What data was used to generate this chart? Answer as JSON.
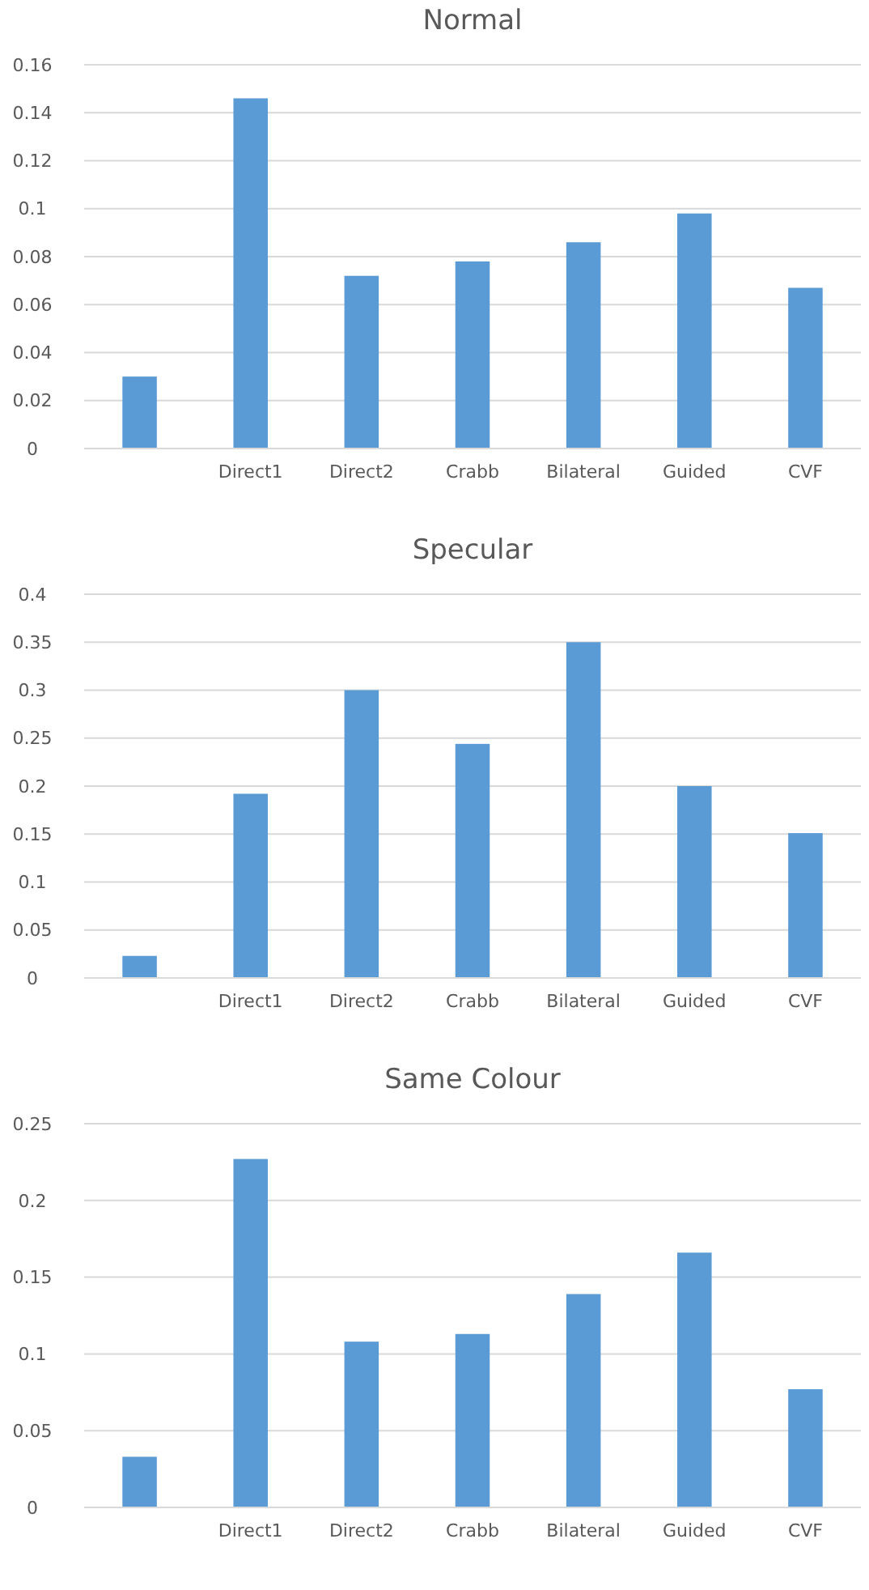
{
  "chart_data": [
    {
      "type": "bar",
      "title": "Normal",
      "categories": [
        null,
        "Direct1",
        "Direct2",
        "Crabb",
        "Bilateral",
        "Guided",
        "CVF"
      ],
      "values": [
        0.03,
        0.146,
        0.072,
        0.078,
        0.086,
        0.098,
        0.067
      ],
      "color": "#5b9bd5",
      "ylim": [
        0,
        0.16
      ],
      "yticks": [
        0,
        0.02,
        0.04,
        0.06,
        0.08,
        0.1,
        0.12,
        0.14,
        0.16
      ],
      "grid": "y"
    },
    {
      "type": "bar",
      "title": "Specular",
      "categories": [
        null,
        "Direct1",
        "Direct2",
        "Crabb",
        "Bilateral",
        "Guided",
        "CVF"
      ],
      "values": [
        0.023,
        0.192,
        0.3,
        0.244,
        0.35,
        0.2,
        0.151
      ],
      "color": "#5b9bd5",
      "ylim": [
        0,
        0.4
      ],
      "yticks": [
        0,
        0.05,
        0.1,
        0.15,
        0.2,
        0.25,
        0.3,
        0.35,
        0.4
      ],
      "grid": "y"
    },
    {
      "type": "bar",
      "title": "Same Colour",
      "categories": [
        null,
        "Direct1",
        "Direct2",
        "Crabb",
        "Bilateral",
        "Guided",
        "CVF"
      ],
      "values": [
        0.033,
        0.227,
        0.108,
        0.113,
        0.139,
        0.166,
        0.077
      ],
      "color": "#5b9bd5",
      "ylim": [
        0,
        0.25
      ],
      "yticks": [
        0,
        0.05,
        0.1,
        0.15,
        0.2,
        0.25
      ],
      "grid": "y"
    }
  ]
}
